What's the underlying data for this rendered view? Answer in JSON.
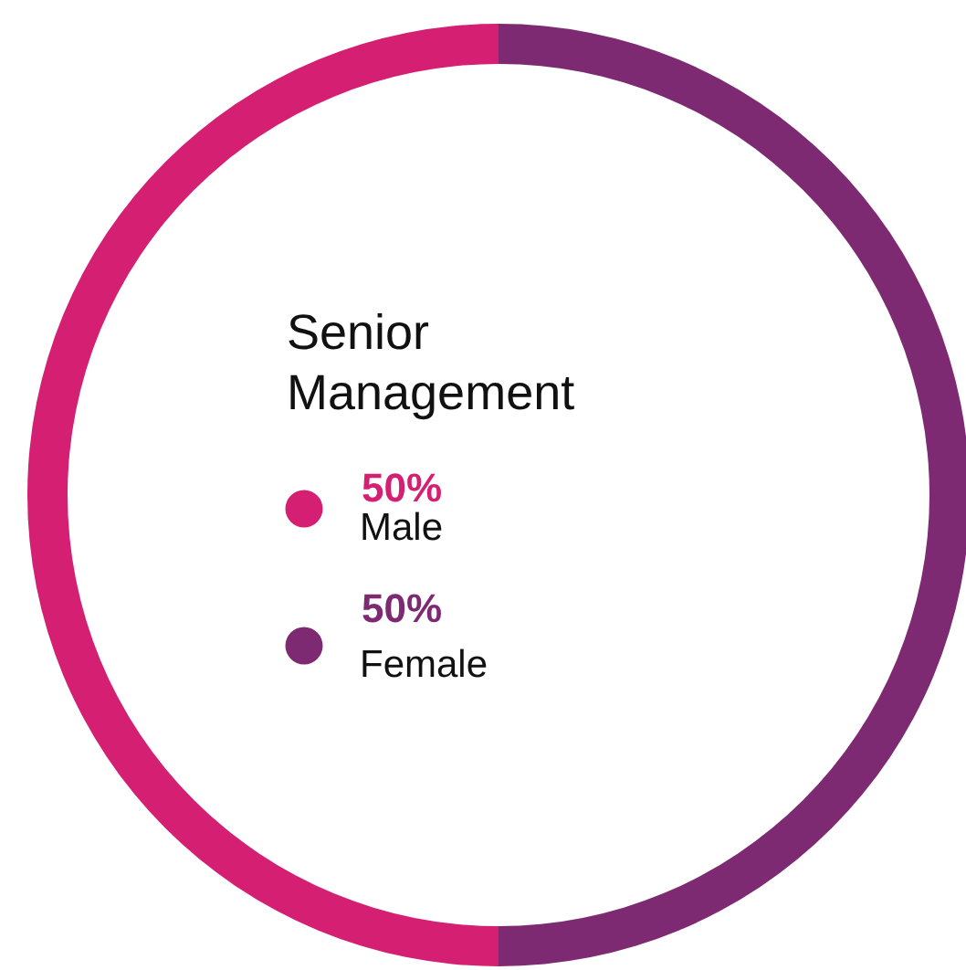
{
  "chart_data": {
    "type": "donut",
    "title": "Senior Management",
    "categories": [
      "Male",
      "Female"
    ],
    "values": [
      50,
      50
    ],
    "colors": [
      "#d41f73",
      "#7d2a72"
    ],
    "value_labels": [
      "50%",
      "50%"
    ],
    "legend": "center"
  }
}
